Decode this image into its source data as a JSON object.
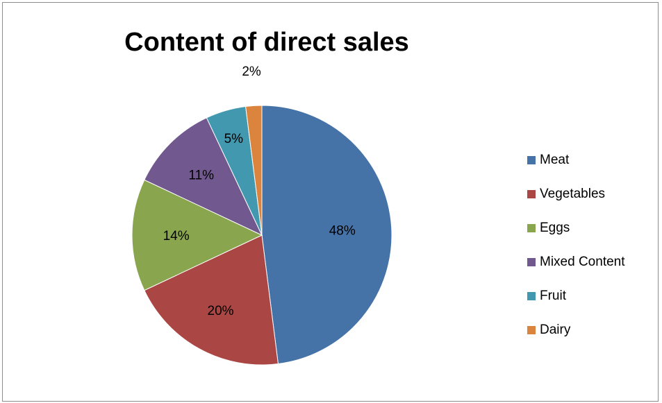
{
  "chart_data": {
    "type": "pie",
    "title": "Content of direct sales",
    "categories": [
      "Meat",
      "Vegetables",
      "Eggs",
      "Mixed Content",
      "Fruit",
      "Dairy"
    ],
    "values": [
      48,
      20,
      14,
      11,
      5,
      2
    ],
    "labels": [
      "48%",
      "20%",
      "14%",
      "11%",
      "5%",
      "2%"
    ],
    "colors": [
      "#4572a7",
      "#aa4643",
      "#89a54e",
      "#71588f",
      "#4198af",
      "#db843d"
    ],
    "legend_position": "right"
  }
}
